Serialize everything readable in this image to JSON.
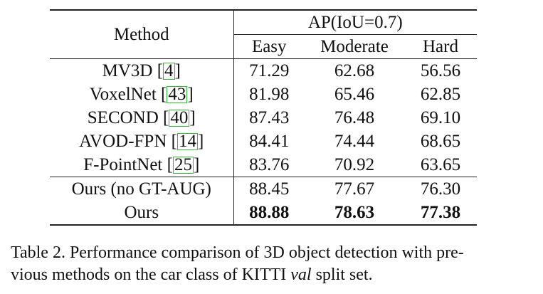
{
  "table": {
    "header": {
      "method": "Method",
      "group": "AP(IoU=0.7)",
      "columns": [
        "Easy",
        "Moderate",
        "Hard"
      ]
    },
    "rows": [
      {
        "method": "MV3D [",
        "cite": "4",
        "close": "]",
        "easy": "71.29",
        "moderate": "62.68",
        "hard": "56.56"
      },
      {
        "method": "VoxelNet [",
        "cite": "43",
        "close": "]",
        "easy": "81.98",
        "moderate": "65.46",
        "hard": "62.85"
      },
      {
        "method": "SECOND [",
        "cite": "40",
        "close": "]",
        "easy": "87.43",
        "moderate": "76.48",
        "hard": "69.10"
      },
      {
        "method": "AVOD-FPN [",
        "cite": "14",
        "close": "]",
        "easy": "84.41",
        "moderate": "74.44",
        "hard": "68.65"
      },
      {
        "method": "F-PointNet [",
        "cite": "25",
        "close": "]",
        "easy": "83.76",
        "moderate": "70.92",
        "hard": "63.65"
      }
    ],
    "ours_rows": [
      {
        "method": "Ours (no GT-AUG)",
        "easy": "88.45",
        "moderate": "77.67",
        "hard": "76.30"
      },
      {
        "method": "Ours",
        "easy": "88.88",
        "moderate": "78.63",
        "hard": "77.38"
      }
    ]
  },
  "caption": {
    "line1": "Table 2. Performance comparison of 3D object detection with pre-",
    "line2_a": "vious methods on the car class of KITTI ",
    "line2_em": "val",
    "line2_b": " split set."
  },
  "colors": {
    "citation_box": "#2ebd2e"
  }
}
